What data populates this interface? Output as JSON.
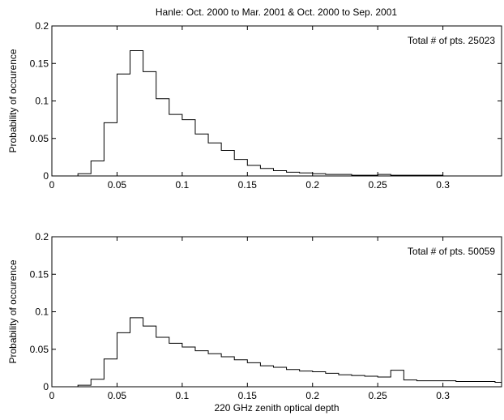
{
  "figure_title": "Hanle: Oct. 2000 to Mar. 2001 & Oct. 2000 to Sep. 2001",
  "chart_data": [
    {
      "type": "bar",
      "style": "step histogram",
      "title": "",
      "annotation": "Total # of pts. 25023",
      "xlabel": "",
      "ylabel": "Probability of occurence",
      "xlim": [
        0,
        0.345
      ],
      "ylim": [
        0,
        0.2
      ],
      "xticks": [
        0,
        0.05,
        0.1,
        0.15,
        0.2,
        0.25,
        0.3
      ],
      "xtick_labels": [
        "0",
        "0.05",
        "0.1",
        "0.15",
        "0.2",
        "0.25",
        "0.3"
      ],
      "yticks": [
        0,
        0.05,
        0.1,
        0.15,
        0.2
      ],
      "ytick_labels": [
        "0",
        "0.05",
        "0.1",
        "0.15",
        "0.2"
      ],
      "grid": false,
      "bin_edges": [
        0.01,
        0.02,
        0.03,
        0.04,
        0.05,
        0.06,
        0.07,
        0.08,
        0.09,
        0.1,
        0.11,
        0.12,
        0.13,
        0.14,
        0.15,
        0.16,
        0.17,
        0.18,
        0.19,
        0.2,
        0.21,
        0.22,
        0.23,
        0.24,
        0.25,
        0.26,
        0.27,
        0.28,
        0.29,
        0.3,
        0.31,
        0.32,
        0.33
      ],
      "values": [
        0.0,
        0.003,
        0.02,
        0.071,
        0.136,
        0.167,
        0.139,
        0.103,
        0.082,
        0.075,
        0.056,
        0.044,
        0.034,
        0.022,
        0.014,
        0.01,
        0.007,
        0.005,
        0.004,
        0.003,
        0.002,
        0.002,
        0.001,
        0.001,
        0.002,
        0.001,
        0.001,
        0.001,
        0.001,
        0.0,
        0.0,
        0.0
      ]
    },
    {
      "type": "bar",
      "style": "step histogram",
      "title": "",
      "annotation": "Total # of pts. 50059",
      "xlabel": "220 GHz zenith optical depth",
      "ylabel": "Probability of occurence",
      "xlim": [
        0,
        0.345
      ],
      "ylim": [
        0,
        0.2
      ],
      "xticks": [
        0,
        0.05,
        0.1,
        0.15,
        0.2,
        0.25,
        0.3
      ],
      "xtick_labels": [
        "0",
        "0.05",
        "0.1",
        "0.15",
        "0.2",
        "0.25",
        "0.3"
      ],
      "yticks": [
        0,
        0.05,
        0.1,
        0.15,
        0.2
      ],
      "ytick_labels": [
        "0",
        "0.05",
        "0.1",
        "0.15",
        "0.2"
      ],
      "grid": false,
      "bin_edges": [
        0.01,
        0.02,
        0.03,
        0.04,
        0.05,
        0.06,
        0.07,
        0.08,
        0.09,
        0.1,
        0.11,
        0.12,
        0.13,
        0.14,
        0.15,
        0.16,
        0.17,
        0.18,
        0.19,
        0.2,
        0.21,
        0.22,
        0.23,
        0.24,
        0.25,
        0.26,
        0.27,
        0.28,
        0.29,
        0.3,
        0.31,
        0.32,
        0.33,
        0.34,
        0.345
      ],
      "values": [
        0.0,
        0.002,
        0.01,
        0.037,
        0.072,
        0.092,
        0.081,
        0.066,
        0.058,
        0.053,
        0.048,
        0.044,
        0.04,
        0.036,
        0.032,
        0.028,
        0.026,
        0.023,
        0.021,
        0.02,
        0.018,
        0.016,
        0.015,
        0.014,
        0.013,
        0.022,
        0.009,
        0.008,
        0.008,
        0.008,
        0.007,
        0.007,
        0.007,
        0.006
      ]
    }
  ]
}
